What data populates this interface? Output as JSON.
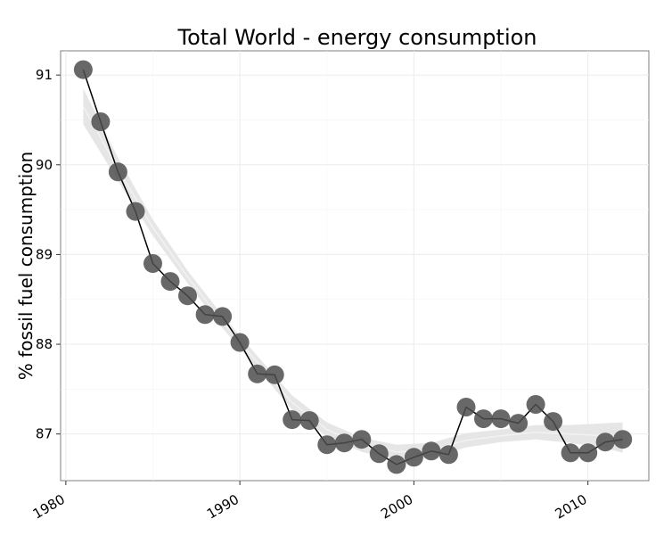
{
  "chart_data": {
    "type": "line",
    "title": "Total World - energy consumption",
    "xlabel": "",
    "ylabel": "% fossil fuel consumption",
    "xlim": [
      1979.7,
      2013.5
    ],
    "ylim": [
      86.48,
      91.27
    ],
    "x_ticks": [
      1980,
      1990,
      2000,
      2010
    ],
    "y_ticks": [
      87,
      88,
      89,
      90,
      91
    ],
    "grid": true,
    "legend": "none",
    "colors": {
      "panel_background": "#ffffff",
      "grid_major": "#ebebeb",
      "grid_minor": "#f5f5f5",
      "point": "#4d4d4d",
      "line": "#000000",
      "smooth_band": "#e6e6e6",
      "smooth_line": "#f2f2f2"
    },
    "series": [
      {
        "x": [
          1981,
          1982,
          1983,
          1984,
          1985,
          1986,
          1987,
          1988,
          1989,
          1990,
          1991,
          1992,
          1993,
          1994,
          1995,
          1996,
          1997,
          1998,
          1999,
          2000,
          2001,
          2002,
          2003,
          2004,
          2005,
          2006,
          2007,
          2008,
          2009,
          2010,
          2011,
          2012
        ],
        "y": [
          91.06,
          90.48,
          89.92,
          89.48,
          88.9,
          88.7,
          88.54,
          88.33,
          88.31,
          88.02,
          87.67,
          87.66,
          87.16,
          87.15,
          86.88,
          86.9,
          86.94,
          86.78,
          86.66,
          86.74,
          86.81,
          86.77,
          87.3,
          87.17,
          87.17,
          87.12,
          87.33,
          87.14,
          86.79,
          86.79,
          86.91,
          86.94
        ]
      }
    ],
    "smooth": {
      "x": [
        1981,
        1983,
        1985,
        1987,
        1989,
        1991,
        1993,
        1995,
        1997,
        1999,
        2001,
        2003,
        2005,
        2007,
        2009,
        2011,
        2012
      ],
      "y": [
        90.65,
        89.95,
        89.3,
        88.75,
        88.25,
        87.8,
        87.35,
        87.05,
        86.88,
        86.8,
        86.82,
        86.93,
        86.98,
        87.02,
        87.0,
        86.98,
        86.96
      ],
      "band_halfwidth": [
        0.2,
        0.13,
        0.09,
        0.07,
        0.07,
        0.07,
        0.08,
        0.08,
        0.08,
        0.08,
        0.08,
        0.08,
        0.07,
        0.08,
        0.1,
        0.14,
        0.17
      ]
    }
  }
}
